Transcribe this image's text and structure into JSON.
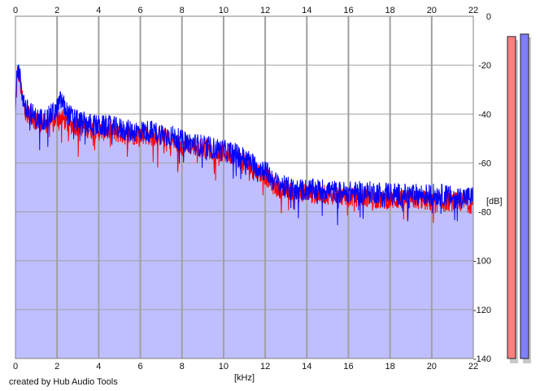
{
  "chart_data": {
    "type": "line",
    "x_axis": {
      "unit_label": "[kHz]",
      "range": [
        0,
        22
      ],
      "ticks": [
        "0",
        "2",
        "4",
        "6",
        "8",
        "10",
        "12",
        "14",
        "16",
        "18",
        "20",
        "22"
      ]
    },
    "y_axis": {
      "unit_label": "[dB]",
      "range": [
        -140,
        0
      ],
      "ticks": [
        "0",
        "-20",
        "-40",
        "-60",
        "-80",
        "-100",
        "-120",
        "-140"
      ]
    },
    "grid": true,
    "fill_color": "#bfbfff",
    "series": [
      {
        "color": "#ff0000",
        "x": [
          0,
          0.1,
          0.2,
          0.3,
          0.5,
          0.8,
          1.0,
          1.5,
          2.0,
          2.2,
          2.5,
          3.0,
          3.5,
          4.0,
          4.5,
          5.0,
          5.5,
          6.0,
          6.5,
          7.0,
          7.5,
          8.0,
          8.5,
          9.0,
          9.5,
          10.0,
          10.5,
          11.0,
          11.5,
          12.0,
          12.5,
          13.0,
          13.5,
          14.0,
          14.5,
          15.0,
          15.5,
          16.0,
          16.5,
          17.0,
          17.5,
          18.0,
          18.5,
          19.0,
          19.5,
          20.0,
          20.5,
          21.0,
          21.5,
          22.0
        ],
        "y": [
          -38,
          -22,
          -25,
          -32,
          -39,
          -41,
          -43,
          -44,
          -42,
          -41,
          -44,
          -45,
          -46,
          -47,
          -47,
          -48,
          -49,
          -48,
          -49,
          -49,
          -51,
          -53,
          -53,
          -54,
          -55,
          -56,
          -57,
          -60,
          -63,
          -65,
          -70,
          -71,
          -72,
          -72,
          -73,
          -73,
          -73,
          -74,
          -74,
          -74,
          -75,
          -75,
          -75,
          -75,
          -75,
          -76,
          -76,
          -76,
          -76,
          -77
        ]
      },
      {
        "color": "#0000ff",
        "x": [
          0,
          0.1,
          0.2,
          0.3,
          0.5,
          0.8,
          1.0,
          1.5,
          2.0,
          2.2,
          2.5,
          3.0,
          3.5,
          4.0,
          4.5,
          5.0,
          5.5,
          6.0,
          6.5,
          7.0,
          7.5,
          8.0,
          8.5,
          9.0,
          9.5,
          10.0,
          10.5,
          11.0,
          11.5,
          12.0,
          12.5,
          13.0,
          13.5,
          14.0,
          14.5,
          15.0,
          15.5,
          16.0,
          16.5,
          17.0,
          17.5,
          18.0,
          18.5,
          19.0,
          19.5,
          20.0,
          20.5,
          21.0,
          21.5,
          22.0
        ],
        "y": [
          -36,
          -21,
          -24,
          -31,
          -38,
          -40,
          -42,
          -42,
          -38,
          -34,
          -40,
          -43,
          -44,
          -45,
          -45,
          -46,
          -47,
          -47,
          -47,
          -48,
          -49,
          -51,
          -52,
          -53,
          -54,
          -55,
          -56,
          -58,
          -61,
          -63,
          -68,
          -70,
          -71,
          -71,
          -71,
          -71,
          -72,
          -72,
          -72,
          -72,
          -72,
          -72,
          -73,
          -73,
          -73,
          -73,
          -73,
          -74,
          -74,
          -74
        ]
      }
    ]
  },
  "level_meters": [
    {
      "color": "#ff8080",
      "level_db": -8.3
    },
    {
      "color": "#8080ff",
      "level_db": -7.3
    }
  ],
  "credit": "created by Hub Audio Tools"
}
